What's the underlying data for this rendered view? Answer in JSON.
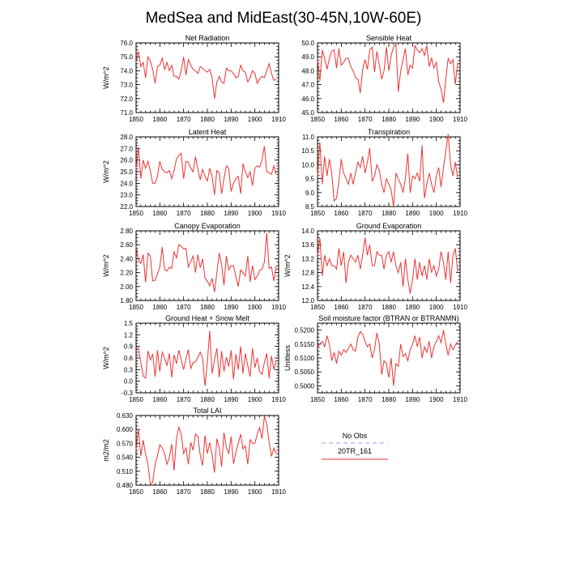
{
  "title": "MedSea and MidEast(30-45N,10W-60E)",
  "legend": {
    "obs_label": "No Obs",
    "obs_color": "#9999ee",
    "model_label": "20TR_161",
    "model_color": "#ee3333"
  },
  "chart_data": [
    {
      "type": "line",
      "title": "Net Radiation",
      "ylabel": "W/m^2",
      "xlim": [
        1850,
        1910
      ],
      "ylim": [
        71.0,
        76.0
      ],
      "xticks": [
        "1850",
        "1860",
        "1870",
        "1880",
        "1890",
        "1900",
        "1910"
      ],
      "yticks": [
        "71.0",
        "72.0",
        "73.0",
        "74.0",
        "75.0",
        "76.0"
      ],
      "series": [
        {
          "name": "20TR_161",
          "start_year": 1850,
          "values": [
            74.6,
            75.4,
            74.3,
            74.6,
            73.5,
            75.0,
            74.7,
            74.1,
            73.1,
            74.3,
            74.4,
            74.9,
            74.1,
            74.6,
            74.0,
            74.4,
            73.6,
            73.6,
            73.4,
            74.0,
            75.0,
            73.7,
            74.8,
            74.4,
            74.1,
            74.0,
            73.8,
            74.3,
            74.2,
            74.0,
            73.9,
            74.1,
            73.5,
            72.0,
            73.2,
            73.6,
            73.2,
            73.1,
            74.2,
            74.0,
            74.0,
            73.8,
            73.5,
            73.6,
            74.4,
            74.0,
            73.9,
            73.2,
            73.5,
            74.0,
            73.8,
            73.1,
            73.4,
            73.6,
            73.5,
            74.0,
            74.5,
            73.8,
            73.3,
            73.4
          ]
        }
      ]
    },
    {
      "type": "line",
      "title": "Sensible Heat",
      "ylabel": "",
      "xlim": [
        1850,
        1910
      ],
      "ylim": [
        45.0,
        50.0
      ],
      "xticks": [
        "1850",
        "1860",
        "1870",
        "1880",
        "1890",
        "1900",
        "1910"
      ],
      "yticks": [
        "45.0",
        "46.0",
        "47.0",
        "48.0",
        "49.0",
        "50.0"
      ],
      "series": [
        {
          "name": "20TR_161",
          "start_year": 1850,
          "values": [
            48.8,
            47.3,
            49.5,
            48.9,
            48.1,
            48.9,
            49.4,
            49.5,
            48.2,
            49.6,
            48.4,
            48.6,
            48.9,
            48.9,
            48.3,
            48.0,
            47.5,
            47.4,
            46.4,
            48.1,
            48.8,
            48.1,
            49.5,
            49.7,
            47.9,
            49.4,
            48.4,
            47.4,
            48.0,
            49.7,
            48.0,
            49.1,
            49.7,
            49.9,
            46.5,
            48.0,
            48.8,
            49.6,
            47.7,
            48.4,
            48.2,
            49.8,
            49.5,
            49.3,
            49.6,
            49.1,
            49.8,
            48.3,
            48.9,
            48.2,
            48.6,
            47.2,
            46.7,
            45.7,
            47.4,
            48.9,
            48.5,
            48.8,
            47.0,
            48.6
          ]
        }
      ]
    },
    {
      "type": "line",
      "title": "Latent Heat",
      "ylabel": "W/m^2",
      "xlim": [
        1850,
        1910
      ],
      "ylim": [
        22.0,
        28.0
      ],
      "xticks": [
        "1850",
        "1860",
        "1870",
        "1880",
        "1890",
        "1900",
        "1910"
      ],
      "yticks": [
        "22.0",
        "23.0",
        "24.0",
        "25.0",
        "26.0",
        "27.0",
        "28.0"
      ],
      "series": [
        {
          "name": "20TR_161",
          "start_year": 1850,
          "values": [
            25.2,
            27.1,
            24.4,
            26.0,
            25.3,
            25.9,
            25.1,
            24.0,
            24.0,
            24.6,
            25.9,
            25.2,
            25.0,
            24.9,
            25.1,
            24.4,
            25.1,
            26.1,
            26.4,
            26.6,
            24.4,
            25.9,
            25.8,
            25.3,
            25.0,
            26.3,
            25.2,
            24.3,
            25.2,
            24.6,
            24.2,
            25.3,
            24.6,
            23.0,
            25.1,
            24.9,
            23.1,
            24.4,
            25.5,
            25.3,
            23.3,
            24.0,
            24.4,
            24.6,
            23.1,
            25.7,
            25.0,
            24.5,
            25.0,
            23.8,
            25.3,
            25.5,
            25.4,
            26.0,
            27.2,
            25.0,
            24.9,
            24.8,
            25.5,
            24.8
          ]
        }
      ]
    },
    {
      "type": "line",
      "title": "Transpiration",
      "ylabel": "",
      "xlim": [
        1850,
        1910
      ],
      "ylim": [
        8.5,
        11.0
      ],
      "xticks": [
        "1850",
        "1860",
        "1870",
        "1880",
        "1890",
        "1900",
        "1910"
      ],
      "yticks": [
        "8.5",
        "9.0",
        "9.5",
        "10.0",
        "10.5",
        "11.0"
      ],
      "series": [
        {
          "name": "20TR_161",
          "start_year": 1850,
          "values": [
            9.6,
            10.8,
            9.3,
            10.3,
            9.6,
            10.2,
            9.7,
            8.7,
            8.8,
            9.4,
            10.2,
            9.7,
            9.5,
            9.3,
            9.7,
            9.3,
            9.7,
            10.1,
            9.9,
            10.3,
            9.7,
            10.1,
            10.6,
            9.4,
            9.6,
            10.0,
            9.8,
            9.3,
            9.0,
            9.5,
            9.3,
            9.1,
            8.5,
            9.7,
            9.5,
            9.3,
            9.0,
            9.5,
            10.4,
            9.0,
            9.6,
            9.5,
            9.7,
            9.4,
            10.7,
            8.8,
            9.3,
            9.7,
            9.3,
            9.0,
            9.6,
            9.9,
            9.2,
            9.9,
            10.5,
            11.1,
            10.0,
            9.6,
            10.1,
            9.5
          ]
        }
      ]
    },
    {
      "type": "line",
      "title": "Canopy Evaporation",
      "ylabel": "W/m^2",
      "xlim": [
        1850,
        1910
      ],
      "ylim": [
        1.8,
        2.8
      ],
      "xticks": [
        "1850",
        "1860",
        "1870",
        "1880",
        "1890",
        "1900",
        "1910"
      ],
      "yticks": [
        "1.80",
        "2.00",
        "2.20",
        "2.40",
        "2.60",
        "2.80"
      ],
      "series": [
        {
          "name": "20TR_161",
          "start_year": 1850,
          "values": [
            2.58,
            2.38,
            2.33,
            2.46,
            2.06,
            2.48,
            2.44,
            2.08,
            2.09,
            2.18,
            2.28,
            2.57,
            2.25,
            2.22,
            2.28,
            2.26,
            2.5,
            2.41,
            2.6,
            2.58,
            2.54,
            2.55,
            2.28,
            2.36,
            2.44,
            2.2,
            2.46,
            2.27,
            2.4,
            2.12,
            2.08,
            2.01,
            2.12,
            1.92,
            2.2,
            2.48,
            2.32,
            2.02,
            2.44,
            2.24,
            2.3,
            2.3,
            2.14,
            2.0,
            2.24,
            2.2,
            2.15,
            2.44,
            2.07,
            2.3,
            2.1,
            2.15,
            2.23,
            2.25,
            2.35,
            2.77,
            2.26,
            2.28,
            2.08,
            2.3
          ]
        }
      ]
    },
    {
      "type": "line",
      "title": "Ground Evaporation",
      "ylabel": "W/m^2",
      "xlim": [
        1850,
        1910
      ],
      "ylim": [
        12.0,
        14.0
      ],
      "xticks": [
        "1850",
        "1860",
        "1870",
        "1880",
        "1890",
        "1900",
        "1910"
      ],
      "yticks": [
        "12.0",
        "12.4",
        "12.8",
        "13.2",
        "13.6",
        "14.0"
      ],
      "series": [
        {
          "name": "20TR_161",
          "start_year": 1850,
          "values": [
            13.3,
            13.8,
            12.7,
            13.3,
            13.0,
            13.2,
            13.0,
            13.0,
            12.9,
            13.5,
            13.0,
            13.4,
            12.5,
            13.1,
            13.3,
            13.2,
            13.1,
            13.3,
            12.9,
            13.3,
            13.8,
            13.3,
            13.6,
            13.0,
            13.0,
            13.4,
            13.3,
            13.3,
            12.9,
            13.3,
            13.4,
            13.1,
            13.4,
            13.0,
            12.8,
            13.1,
            12.4,
            13.2,
            12.6,
            12.2,
            12.6,
            13.2,
            12.6,
            13.1,
            12.7,
            13.0,
            12.6,
            13.2,
            12.8,
            13.0,
            12.7,
            12.9,
            13.4,
            13.1,
            12.6,
            13.4,
            12.5,
            13.3,
            13.5,
            12.8
          ]
        }
      ]
    },
    {
      "type": "line",
      "title": "Ground Heat + Snow Melt",
      "ylabel": "W/m^2",
      "xlim": [
        1850,
        1910
      ],
      "ylim": [
        -0.3,
        1.5
      ],
      "xticks": [
        "1850",
        "1860",
        "1870",
        "1880",
        "1890",
        "1900",
        "1910"
      ],
      "yticks": [
        "-0.3",
        "0.0",
        "0.3",
        "0.6",
        "0.9",
        "1.2",
        "1.5"
      ],
      "series": [
        {
          "name": "20TR_161",
          "start_year": 1850,
          "values": [
            0.88,
            0.85,
            0.48,
            0.13,
            0.08,
            0.78,
            0.55,
            0.7,
            0.12,
            0.8,
            0.25,
            0.75,
            0.6,
            0.4,
            0.72,
            0.1,
            0.68,
            0.45,
            0.8,
            0.55,
            0.3,
            0.58,
            0.82,
            0.33,
            0.48,
            0.5,
            0.62,
            0.75,
            0.6,
            -0.12,
            0.5,
            1.3,
            0.2,
            0.55,
            0.85,
            0.1,
            0.78,
            0.25,
            0.62,
            0.38,
            0.8,
            0.05,
            0.7,
            0.3,
            0.9,
            0.2,
            0.72,
            0.4,
            0.12,
            0.85,
            0.35,
            0.6,
            0.25,
            0.18,
            0.48,
            0.72,
            0.08,
            0.65,
            0.3,
            0.55
          ]
        }
      ]
    },
    {
      "type": "line",
      "title": "Soil moisture factor (BTRAN or BTRANMN)",
      "ylabel": "Unitless",
      "xlim": [
        1850,
        1910
      ],
      "ylim": [
        0.4975,
        0.5225
      ],
      "xticks": [
        "1850",
        "1860",
        "1870",
        "1880",
        "1890",
        "1900",
        "1910"
      ],
      "yticks": [
        "0.5000",
        "0.5050",
        "0.5100",
        "0.5150",
        "0.5200"
      ],
      "series": [
        {
          "name": "20TR_161",
          "start_year": 1850,
          "values": [
            0.5135,
            0.515,
            0.516,
            0.514,
            0.518,
            0.515,
            0.509,
            0.512,
            0.508,
            0.5125,
            0.511,
            0.513,
            0.512,
            0.5135,
            0.515,
            0.513,
            0.5125,
            0.5175,
            0.5195,
            0.5185,
            0.516,
            0.514,
            0.515,
            0.51,
            0.513,
            0.519,
            0.515,
            0.504,
            0.509,
            0.508,
            0.503,
            0.51,
            0.5,
            0.508,
            0.507,
            0.515,
            0.5105,
            0.5115,
            0.509,
            0.513,
            0.515,
            0.518,
            0.514,
            0.5175,
            0.51,
            0.514,
            0.512,
            0.516,
            0.51,
            0.514,
            0.516,
            0.518,
            0.5155,
            0.52,
            0.515,
            0.511,
            0.515,
            0.513,
            0.5145,
            0.516
          ]
        }
      ]
    },
    {
      "type": "line",
      "title": "Total LAI",
      "ylabel": "m2/m2",
      "xlim": [
        1850,
        1910
      ],
      "ylim": [
        0.48,
        0.63
      ],
      "xticks": [
        "1850",
        "1860",
        "1870",
        "1880",
        "1890",
        "1900",
        "1910"
      ],
      "yticks": [
        "0.480",
        "0.510",
        "0.540",
        "0.570",
        "0.600",
        "0.630"
      ],
      "series": [
        {
          "name": "20TR_161",
          "start_year": 1850,
          "values": [
            0.555,
            0.6,
            0.543,
            0.577,
            0.547,
            0.525,
            0.482,
            0.486,
            0.525,
            0.543,
            0.567,
            0.56,
            0.548,
            0.525,
            0.54,
            0.568,
            0.512,
            0.58,
            0.605,
            0.59,
            0.548,
            0.56,
            0.525,
            0.572,
            0.555,
            0.59,
            0.585,
            0.545,
            0.522,
            0.587,
            0.548,
            0.572,
            0.545,
            0.507,
            0.58,
            0.56,
            0.52,
            0.593,
            0.561,
            0.548,
            0.585,
            0.526,
            0.55,
            0.57,
            0.59,
            0.558,
            0.565,
            0.525,
            0.578,
            0.57,
            0.57,
            0.59,
            0.604,
            0.58,
            0.628,
            0.612,
            0.572,
            0.542,
            0.56,
            0.548
          ]
        }
      ]
    }
  ]
}
